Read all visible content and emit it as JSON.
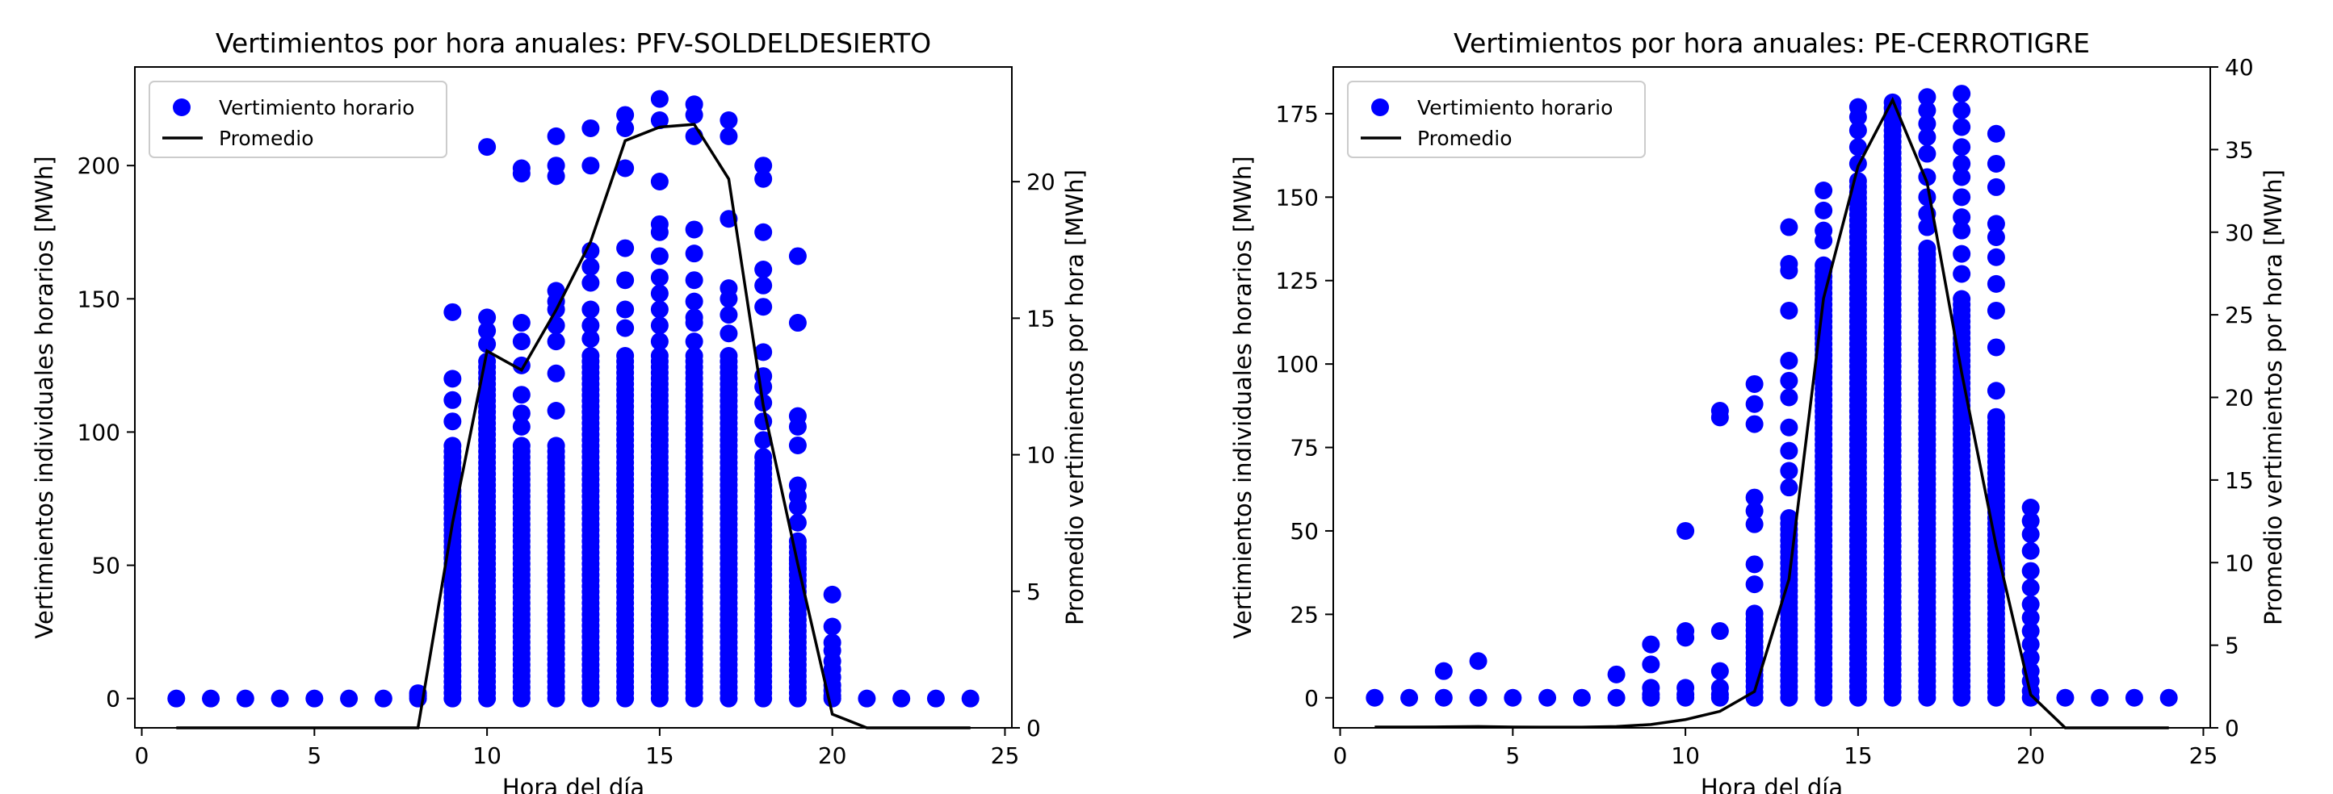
{
  "chart_data": [
    {
      "type": "scatter",
      "title": "Vertimientos por hora anuales: PFV-SOLDELDESIERTO",
      "xlabel": "Hora del día",
      "ylabel": "Vertimientos individuales horarios [MWh]",
      "y2label": "Promedio vertimientos por hora [MWh]",
      "xlim": [
        -0.2,
        25.2
      ],
      "ylim": [
        -11,
        237
      ],
      "y2lim": [
        0,
        24.2
      ],
      "xticks": [
        0,
        5,
        10,
        15,
        20,
        25
      ],
      "yticks": [
        0,
        50,
        100,
        150,
        200
      ],
      "y2ticks": [
        0,
        5,
        10,
        15,
        20
      ],
      "legend_position": "upper-left",
      "series": [
        {
          "name": "Vertimiento horario",
          "kind": "scatter",
          "axis": "left",
          "color": "#0000ff",
          "columns": [
            {
              "x": 1,
              "values": [
                0
              ]
            },
            {
              "x": 2,
              "values": [
                0
              ]
            },
            {
              "x": 3,
              "values": [
                0
              ]
            },
            {
              "x": 4,
              "values": [
                0
              ]
            },
            {
              "x": 5,
              "values": [
                0
              ]
            },
            {
              "x": 6,
              "values": [
                0
              ]
            },
            {
              "x": 7,
              "values": [
                0
              ]
            },
            {
              "x": 8,
              "values": [
                0,
                1,
                2
              ]
            },
            {
              "x": 9,
              "dense_max": 96,
              "values": [
                145,
                120,
                112,
                104
              ]
            },
            {
              "x": 10,
              "dense_max": 128,
              "values": [
                207,
                143,
                138,
                133
              ]
            },
            {
              "x": 11,
              "dense_max": 96,
              "values": [
                199,
                197,
                141,
                134,
                125,
                114,
                107,
                102
              ]
            },
            {
              "x": 12,
              "dense_max": 96,
              "values": [
                211,
                200,
                196,
                153,
                149,
                146,
                140,
                134,
                122,
                108
              ]
            },
            {
              "x": 13,
              "dense_max": 130,
              "values": [
                214,
                200,
                168,
                162,
                156,
                146,
                140,
                135
              ]
            },
            {
              "x": 14,
              "dense_max": 130,
              "values": [
                219,
                214,
                199,
                169,
                157,
                146,
                139
              ]
            },
            {
              "x": 15,
              "dense_max": 130,
              "values": [
                225,
                217,
                194,
                178,
                175,
                166,
                158,
                152,
                146,
                140,
                134
              ]
            },
            {
              "x": 16,
              "dense_max": 130,
              "values": [
                223,
                219,
                211,
                176,
                167,
                157,
                149,
                143,
                141,
                134
              ]
            },
            {
              "x": 17,
              "dense_max": 130,
              "values": [
                217,
                211,
                180,
                154,
                150,
                144,
                137
              ]
            },
            {
              "x": 18,
              "dense_max": 92,
              "values": [
                200,
                195,
                175,
                161,
                155,
                147,
                130,
                121,
                117,
                111,
                104,
                97
              ]
            },
            {
              "x": 19,
              "dense_max": 60,
              "values": [
                166,
                141,
                106,
                102,
                95,
                80,
                76,
                72,
                66,
                52,
                49
              ]
            },
            {
              "x": 20,
              "values": [
                39,
                27,
                21,
                18,
                14,
                11,
                8,
                5,
                3,
                1,
                0
              ]
            },
            {
              "x": 21,
              "values": [
                0
              ]
            },
            {
              "x": 22,
              "values": [
                0
              ]
            },
            {
              "x": 23,
              "values": [
                0
              ]
            },
            {
              "x": 24,
              "values": [
                0
              ]
            }
          ]
        },
        {
          "name": "Promedio",
          "kind": "line",
          "axis": "right",
          "color": "#000000",
          "x": [
            1,
            2,
            3,
            4,
            5,
            6,
            7,
            8,
            9,
            10,
            11,
            12,
            13,
            14,
            15,
            16,
            17,
            18,
            19,
            20,
            21,
            22,
            23,
            24
          ],
          "y": [
            0,
            0,
            0,
            0,
            0,
            0,
            0,
            0,
            7.5,
            13.8,
            13.1,
            15.3,
            17.8,
            21.5,
            22.0,
            22.1,
            20.1,
            11.8,
            6.0,
            0.5,
            0,
            0,
            0,
            0
          ]
        }
      ]
    },
    {
      "type": "scatter",
      "title": "Vertimientos por hora anuales: PE-CERROTIGRE",
      "xlabel": "Hora del día",
      "ylabel": "Vertimientos individuales horarios [MWh]",
      "y2label": "Promedio vertimientos por hora [MWh]",
      "xlim": [
        -0.2,
        25.2
      ],
      "ylim": [
        -9,
        189
      ],
      "y2lim": [
        0,
        40
      ],
      "xticks": [
        0,
        5,
        10,
        15,
        20,
        25
      ],
      "yticks": [
        0,
        25,
        50,
        75,
        100,
        125,
        150,
        175
      ],
      "y2ticks": [
        0,
        5,
        10,
        15,
        20,
        25,
        30,
        35,
        40
      ],
      "legend_position": "upper-left",
      "series": [
        {
          "name": "Vertimiento horario",
          "kind": "scatter",
          "axis": "left",
          "color": "#0000ff",
          "columns": [
            {
              "x": 1,
              "values": [
                0
              ]
            },
            {
              "x": 2,
              "values": [
                0
              ]
            },
            {
              "x": 3,
              "values": [
                8,
                0
              ]
            },
            {
              "x": 4,
              "values": [
                11,
                0
              ]
            },
            {
              "x": 5,
              "values": [
                0
              ]
            },
            {
              "x": 6,
              "values": [
                0
              ]
            },
            {
              "x": 7,
              "values": [
                0
              ]
            },
            {
              "x": 8,
              "values": [
                7,
                0
              ]
            },
            {
              "x": 9,
              "values": [
                16,
                10,
                3,
                1,
                0
              ]
            },
            {
              "x": 10,
              "values": [
                50,
                20,
                18,
                3,
                1,
                0
              ]
            },
            {
              "x": 11,
              "values": [
                86,
                84,
                20,
                8,
                3,
                1,
                0
              ]
            },
            {
              "x": 12,
              "dense_max": 26,
              "values": [
                94,
                88,
                82,
                60,
                56,
                52,
                40,
                34
              ]
            },
            {
              "x": 13,
              "dense_max": 55,
              "values": [
                141,
                130,
                128,
                116,
                101,
                95,
                90,
                81,
                74,
                68,
                63
              ]
            },
            {
              "x": 14,
              "dense_max": 130,
              "values": [
                152,
                146,
                140,
                137
              ]
            },
            {
              "x": 15,
              "dense_max": 155,
              "values": [
                177,
                174,
                170,
                165,
                160
              ]
            },
            {
              "x": 16,
              "dense_max": 180,
              "values": []
            },
            {
              "x": 17,
              "dense_max": 135,
              "values": [
                180,
                176,
                172,
                168,
                163,
                156,
                150,
                145,
                141
              ]
            },
            {
              "x": 18,
              "dense_max": 120,
              "values": [
                181,
                176,
                171,
                165,
                160,
                156,
                150,
                144,
                140,
                133,
                127
              ]
            },
            {
              "x": 19,
              "dense_max": 85,
              "values": [
                169,
                160,
                153,
                142,
                138,
                132,
                124,
                116,
                105,
                92
              ]
            },
            {
              "x": 20,
              "values": [
                57,
                53,
                49,
                44,
                38,
                33,
                28,
                24,
                20,
                16,
                12,
                8,
                5,
                2,
                0
              ]
            },
            {
              "x": 21,
              "values": [
                0
              ]
            },
            {
              "x": 22,
              "values": [
                0
              ]
            },
            {
              "x": 23,
              "values": [
                0
              ]
            },
            {
              "x": 24,
              "values": [
                0
              ]
            }
          ]
        },
        {
          "name": "Promedio",
          "kind": "line",
          "axis": "right",
          "color": "#000000",
          "x": [
            1,
            2,
            3,
            4,
            5,
            6,
            7,
            8,
            9,
            10,
            11,
            12,
            13,
            14,
            15,
            16,
            17,
            18,
            19,
            20,
            21,
            22,
            23,
            24
          ],
          "y": [
            0.05,
            0.05,
            0.06,
            0.08,
            0.05,
            0.04,
            0.04,
            0.08,
            0.2,
            0.5,
            1.0,
            2.2,
            9.0,
            26.0,
            34.0,
            38.0,
            33.0,
            21.5,
            11.0,
            2.0,
            0,
            0,
            0,
            0
          ]
        }
      ]
    }
  ]
}
